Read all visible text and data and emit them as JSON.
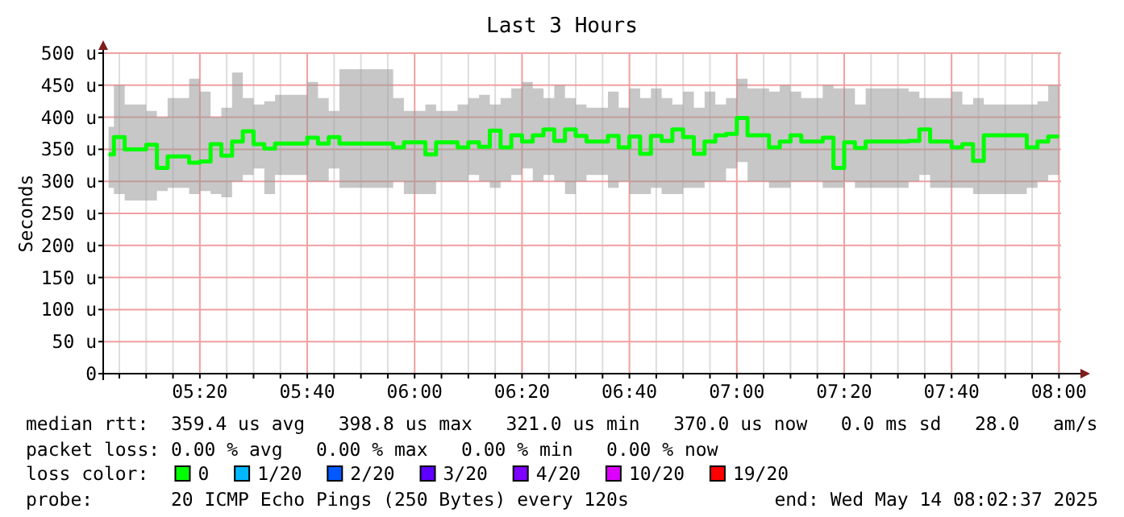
{
  "chart_data": {
    "type": "step",
    "title": "Last 3 Hours",
    "ylabel": "Seconds",
    "legend_title": "loss color:",
    "legend": "bottom",
    "grid": true,
    "x": [
      "2025-05-14T05:03",
      "2025-05-14T05:04",
      "2025-05-14T05:06",
      "2025-05-14T05:10",
      "2025-05-14T05:12",
      "2025-05-14T05:14",
      "2025-05-14T05:18",
      "2025-05-14T05:20",
      "2025-05-14T05:22",
      "2025-05-14T05:24",
      "2025-05-14T05:26",
      "2025-05-14T05:28",
      "2025-05-14T05:30",
      "2025-05-14T05:32",
      "2025-05-14T05:34",
      "2025-05-14T05:40",
      "2025-05-14T05:42",
      "2025-05-14T05:44",
      "2025-05-14T05:46",
      "2025-05-14T05:56",
      "2025-05-14T05:58",
      "2025-05-14T06:02",
      "2025-05-14T06:04",
      "2025-05-14T06:08",
      "2025-05-14T06:10",
      "2025-05-14T06:12",
      "2025-05-14T06:14",
      "2025-05-14T06:16",
      "2025-05-14T06:18",
      "2025-05-14T06:20",
      "2025-05-14T06:22",
      "2025-05-14T06:24",
      "2025-05-14T06:26",
      "2025-05-14T06:28",
      "2025-05-14T06:30",
      "2025-05-14T06:32",
      "2025-05-14T06:36",
      "2025-05-14T06:38",
      "2025-05-14T06:40",
      "2025-05-14T06:42",
      "2025-05-14T06:44",
      "2025-05-14T06:46",
      "2025-05-14T06:48",
      "2025-05-14T06:50",
      "2025-05-14T06:52",
      "2025-05-14T06:54",
      "2025-05-14T06:56",
      "2025-05-14T06:58",
      "2025-05-14T07:00",
      "2025-05-14T07:02",
      "2025-05-14T07:06",
      "2025-05-14T07:08",
      "2025-05-14T07:10",
      "2025-05-14T07:12",
      "2025-05-14T07:16",
      "2025-05-14T07:18",
      "2025-05-14T07:20",
      "2025-05-14T07:22",
      "2025-05-14T07:24",
      "2025-05-14T07:32",
      "2025-05-14T07:34",
      "2025-05-14T07:36",
      "2025-05-14T07:40",
      "2025-05-14T07:42",
      "2025-05-14T07:44",
      "2025-05-14T07:46",
      "2025-05-14T07:54",
      "2025-05-14T07:56",
      "2025-05-14T07:58",
      "2025-05-14T08:00"
    ],
    "series": [
      {
        "name": "0",
        "color": "#00ff00",
        "values": [
          342,
          369,
          350,
          357,
          321,
          339,
          329,
          331,
          358,
          340,
          362,
          378,
          358,
          351,
          359,
          368,
          359,
          369,
          359,
          353,
          361,
          342,
          361,
          353,
          361,
          354,
          379,
          353,
          372,
          362,
          372,
          381,
          363,
          381,
          371,
          362,
          371,
          353,
          370,
          343,
          371,
          363,
          381,
          369,
          343,
          362,
          372,
          374,
          399,
          372,
          353,
          362,
          372,
          362,
          368,
          321,
          361,
          352,
          362,
          363,
          381,
          362,
          353,
          358,
          332,
          372,
          353,
          362,
          370,
          370
        ],
        "lower": [
          290,
          280,
          270,
          270,
          285,
          290,
          280,
          285,
          280,
          275,
          300,
          310,
          320,
          280,
          310,
          300,
          300,
          320,
          290,
          300,
          280,
          280,
          300,
          300,
          310,
          300,
          290,
          300,
          310,
          320,
          300,
          310,
          300,
          280,
          300,
          310,
          290,
          300,
          280,
          280,
          290,
          280,
          280,
          290,
          290,
          300,
          300,
          320,
          330,
          300,
          290,
          290,
          300,
          300,
          290,
          290,
          300,
          290,
          290,
          300,
          310,
          290,
          290,
          290,
          280,
          280,
          290,
          300,
          310,
          310
        ],
        "upper": [
          385,
          450,
          420,
          410,
          400,
          430,
          460,
          440,
          400,
          415,
          470,
          430,
          420,
          425,
          435,
          455,
          430,
          410,
          475,
          430,
          410,
          420,
          410,
          420,
          430,
          435,
          420,
          430,
          445,
          455,
          445,
          430,
          450,
          430,
          420,
          415,
          440,
          415,
          445,
          430,
          445,
          430,
          420,
          440,
          415,
          440,
          420,
          430,
          460,
          445,
          440,
          450,
          440,
          430,
          450,
          445,
          445,
          420,
          445,
          440,
          430,
          430,
          440,
          420,
          430,
          420,
          420,
          425,
          450,
          450
        ]
      },
      {
        "name": "1/20",
        "color": "#00b8ff",
        "values": [
          null,
          null,
          null,
          null,
          null,
          null,
          null,
          null,
          null,
          null,
          null,
          null,
          null,
          null,
          null,
          null,
          null,
          null,
          null,
          null,
          null,
          null,
          null,
          null,
          null,
          null,
          null,
          null,
          null,
          null,
          null,
          null,
          null,
          null,
          null,
          null,
          null,
          null,
          null,
          null,
          null,
          null,
          null,
          null,
          null,
          null,
          null,
          null,
          null,
          null,
          null,
          null,
          null,
          null,
          null,
          null,
          null,
          null,
          null,
          null,
          null,
          null,
          null,
          null,
          null,
          null,
          null,
          null,
          null,
          null
        ]
      },
      {
        "name": "2/20",
        "color": "#0059ff",
        "values": [
          null,
          null,
          null,
          null,
          null,
          null,
          null,
          null,
          null,
          null,
          null,
          null,
          null,
          null,
          null,
          null,
          null,
          null,
          null,
          null,
          null,
          null,
          null,
          null,
          null,
          null,
          null,
          null,
          null,
          null,
          null,
          null,
          null,
          null,
          null,
          null,
          null,
          null,
          null,
          null,
          null,
          null,
          null,
          null,
          null,
          null,
          null,
          null,
          null,
          null,
          null,
          null,
          null,
          null,
          null,
          null,
          null,
          null,
          null,
          null,
          null,
          null,
          null,
          null,
          null,
          null,
          null,
          null,
          null,
          null
        ]
      },
      {
        "name": "3/20",
        "color": "#5e00ff",
        "values": [
          null,
          null,
          null,
          null,
          null,
          null,
          null,
          null,
          null,
          null,
          null,
          null,
          null,
          null,
          null,
          null,
          null,
          null,
          null,
          null,
          null,
          null,
          null,
          null,
          null,
          null,
          null,
          null,
          null,
          null,
          null,
          null,
          null,
          null,
          null,
          null,
          null,
          null,
          null,
          null,
          null,
          null,
          null,
          null,
          null,
          null,
          null,
          null,
          null,
          null,
          null,
          null,
          null,
          null,
          null,
          null,
          null,
          null,
          null,
          null,
          null,
          null,
          null,
          null,
          null,
          null,
          null,
          null,
          null,
          null
        ]
      },
      {
        "name": "4/20",
        "color": "#7e00ff",
        "values": [
          null,
          null,
          null,
          null,
          null,
          null,
          null,
          null,
          null,
          null,
          null,
          null,
          null,
          null,
          null,
          null,
          null,
          null,
          null,
          null,
          null,
          null,
          null,
          null,
          null,
          null,
          null,
          null,
          null,
          null,
          null,
          null,
          null,
          null,
          null,
          null,
          null,
          null,
          null,
          null,
          null,
          null,
          null,
          null,
          null,
          null,
          null,
          null,
          null,
          null,
          null,
          null,
          null,
          null,
          null,
          null,
          null,
          null,
          null,
          null,
          null,
          null,
          null,
          null,
          null,
          null,
          null,
          null,
          null,
          null
        ]
      },
      {
        "name": "10/20",
        "color": "#dd00ff",
        "values": [
          null,
          null,
          null,
          null,
          null,
          null,
          null,
          null,
          null,
          null,
          null,
          null,
          null,
          null,
          null,
          null,
          null,
          null,
          null,
          null,
          null,
          null,
          null,
          null,
          null,
          null,
          null,
          null,
          null,
          null,
          null,
          null,
          null,
          null,
          null,
          null,
          null,
          null,
          null,
          null,
          null,
          null,
          null,
          null,
          null,
          null,
          null,
          null,
          null,
          null,
          null,
          null,
          null,
          null,
          null,
          null,
          null,
          null,
          null,
          null,
          null,
          null,
          null,
          null,
          null,
          null,
          null,
          null,
          null,
          null
        ]
      },
      {
        "name": "19/20",
        "color": "#ff0000",
        "values": [
          null,
          null,
          null,
          null,
          null,
          null,
          null,
          null,
          null,
          null,
          null,
          null,
          null,
          null,
          null,
          null,
          null,
          null,
          null,
          null,
          null,
          null,
          null,
          null,
          null,
          null,
          null,
          null,
          null,
          null,
          null,
          null,
          null,
          null,
          null,
          null,
          null,
          null,
          null,
          null,
          null,
          null,
          null,
          null,
          null,
          null,
          null,
          null,
          null,
          null,
          null,
          null,
          null,
          null,
          null,
          null,
          null,
          null,
          null,
          null,
          null,
          null,
          null,
          null,
          null,
          null,
          null,
          null,
          null,
          null
        ]
      }
    ],
    "xlim": [
      "2025-05-14T05:02",
      "2025-05-14T08:04"
    ],
    "xticks": [
      {
        "value": "2025-05-14T05:05",
        "label": null
      },
      {
        "value": "2025-05-14T05:10",
        "label": null
      },
      {
        "value": "2025-05-14T05:15",
        "label": null
      },
      {
        "value": "2025-05-14T05:20",
        "label": "05:20"
      },
      {
        "value": "2025-05-14T05:25",
        "label": null
      },
      {
        "value": "2025-05-14T05:30",
        "label": null
      },
      {
        "value": "2025-05-14T05:35",
        "label": null
      },
      {
        "value": "2025-05-14T05:40",
        "label": "05:40"
      },
      {
        "value": "2025-05-14T05:45",
        "label": null
      },
      {
        "value": "2025-05-14T05:50",
        "label": null
      },
      {
        "value": "2025-05-14T05:55",
        "label": null
      },
      {
        "value": "2025-05-14T06:00",
        "label": "06:00"
      },
      {
        "value": "2025-05-14T06:05",
        "label": null
      },
      {
        "value": "2025-05-14T06:10",
        "label": null
      },
      {
        "value": "2025-05-14T06:15",
        "label": null
      },
      {
        "value": "2025-05-14T06:20",
        "label": "06:20"
      },
      {
        "value": "2025-05-14T06:25",
        "label": null
      },
      {
        "value": "2025-05-14T06:30",
        "label": null
      },
      {
        "value": "2025-05-14T06:35",
        "label": null
      },
      {
        "value": "2025-05-14T06:40",
        "label": "06:40"
      },
      {
        "value": "2025-05-14T06:45",
        "label": null
      },
      {
        "value": "2025-05-14T06:50",
        "label": null
      },
      {
        "value": "2025-05-14T06:55",
        "label": null
      },
      {
        "value": "2025-05-14T07:00",
        "label": "07:00"
      },
      {
        "value": "2025-05-14T07:05",
        "label": null
      },
      {
        "value": "2025-05-14T07:10",
        "label": null
      },
      {
        "value": "2025-05-14T07:15",
        "label": null
      },
      {
        "value": "2025-05-14T07:20",
        "label": "07:20"
      },
      {
        "value": "2025-05-14T07:25",
        "label": null
      },
      {
        "value": "2025-05-14T07:30",
        "label": null
      },
      {
        "value": "2025-05-14T07:35",
        "label": null
      },
      {
        "value": "2025-05-14T07:40",
        "label": "07:40"
      },
      {
        "value": "2025-05-14T07:45",
        "label": null
      },
      {
        "value": "2025-05-14T07:50",
        "label": null
      },
      {
        "value": "2025-05-14T07:55",
        "label": null
      },
      {
        "value": "2025-05-14T08:00",
        "label": "08:00"
      }
    ],
    "ylim": [
      0,
      500
    ],
    "yticks": [
      0,
      {
        "value": 50,
        "label": "50 u"
      },
      {
        "value": 100,
        "label": "100 u"
      },
      {
        "value": 150,
        "label": "150 u"
      },
      {
        "value": 200,
        "label": "200 u"
      },
      {
        "value": 250,
        "label": "250 u"
      },
      {
        "value": 300,
        "label": "300 u"
      },
      {
        "value": 350,
        "label": "350 u"
      },
      {
        "value": 400,
        "label": "400 u"
      },
      {
        "value": 450,
        "label": "450 u"
      },
      {
        "value": 500,
        "label": "500 u"
      }
    ],
    "annotations": [
      "median rtt:  359.4 us avg   398.8 us max   321.0 us min   370.0 us now   0.0 ms sd   28.0   am/s",
      "packet loss: 0.00 % avg   0.00 % max   0.00 % min   0.00 % now",
      "probe:       20 ICMP Echo Pings (250 Bytes) every 120s",
      "end: Wed May 14 08:02:37 2025"
    ]
  }
}
